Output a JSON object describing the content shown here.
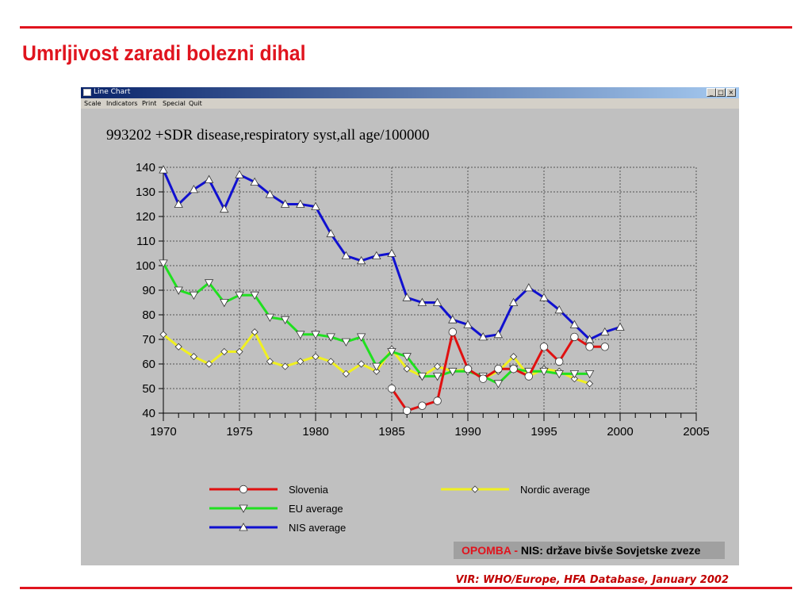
{
  "slide": {
    "title": "Umrljivost zaradi bolezni dihal",
    "source": "VIR: WHO/Europe, HFA Database, January 2002",
    "footnote_label": "OPOMBA - ",
    "footnote_text": "NIS: države bivše Sovjetske zveze"
  },
  "window": {
    "title": "Line Chart",
    "menu": [
      "Scale",
      "Indicators",
      "Print",
      "Special",
      "Quit"
    ],
    "controls": [
      "_",
      "□",
      "×"
    ]
  },
  "colors": {
    "accent_red": "#e0141e",
    "slovenia": "#e01010",
    "eu": "#20e020",
    "nis": "#1010d0",
    "nordic": "#f0f020"
  },
  "chart_data": {
    "type": "line",
    "title": "993202 +SDR disease,respiratory syst,all age/100000",
    "xlim": [
      1970,
      2005
    ],
    "ylim": [
      40,
      140
    ],
    "xticks": [
      1970,
      1975,
      1980,
      1985,
      1990,
      1995,
      2000,
      2005
    ],
    "yticks": [
      40,
      50,
      60,
      70,
      80,
      90,
      100,
      110,
      120,
      130,
      140
    ],
    "grid": true,
    "legend_position": "bottom",
    "series": [
      {
        "name": "Slovenia",
        "marker": "circle",
        "color": "#e01010",
        "x": [
          1985,
          1986,
          1987,
          1988,
          1989,
          1990,
          1991,
          1992,
          1993,
          1994,
          1995,
          1996,
          1997,
          1998,
          1999
        ],
        "values": [
          50,
          41,
          43,
          45,
          73,
          58,
          54,
          58,
          58,
          55,
          67,
          61,
          71,
          67,
          67
        ]
      },
      {
        "name": "Nordic average",
        "marker": "diamond",
        "color": "#f0f020",
        "x": [
          1970,
          1971,
          1972,
          1973,
          1974,
          1975,
          1976,
          1977,
          1978,
          1979,
          1980,
          1981,
          1982,
          1983,
          1984,
          1985,
          1986,
          1987,
          1988,
          1989,
          1990,
          1991,
          1992,
          1993,
          1994,
          1995,
          1996,
          1997,
          1998
        ],
        "values": [
          72,
          67,
          63,
          60,
          65,
          65,
          73,
          61,
          59,
          61,
          63,
          61,
          56,
          60,
          57,
          66,
          58,
          55,
          59,
          57,
          58,
          54,
          57,
          63,
          55,
          58,
          57,
          54,
          52
        ]
      },
      {
        "name": "EU average",
        "marker": "triangle-down",
        "color": "#20e020",
        "x": [
          1970,
          1971,
          1972,
          1973,
          1974,
          1975,
          1976,
          1977,
          1978,
          1979,
          1980,
          1981,
          1982,
          1983,
          1984,
          1985,
          1986,
          1987,
          1988,
          1989,
          1990,
          1991,
          1992,
          1993,
          1994,
          1995,
          1996,
          1997,
          1998
        ],
        "values": [
          101,
          90,
          88,
          93,
          85,
          88,
          88,
          79,
          78,
          72,
          72,
          71,
          69,
          71,
          59,
          65,
          63,
          55,
          55,
          57,
          57,
          55,
          52,
          58,
          57,
          57,
          56,
          56,
          56
        ]
      },
      {
        "name": "NIS average",
        "marker": "triangle-up",
        "color": "#1010d0",
        "x": [
          1970,
          1971,
          1972,
          1973,
          1974,
          1975,
          1976,
          1977,
          1978,
          1979,
          1980,
          1981,
          1982,
          1983,
          1984,
          1985,
          1986,
          1987,
          1988,
          1989,
          1990,
          1991,
          1992,
          1993,
          1994,
          1995,
          1996,
          1997,
          1998,
          1999,
          2000
        ],
        "values": [
          139,
          125,
          131,
          135,
          123,
          137,
          134,
          129,
          125,
          125,
          124,
          113,
          104,
          102,
          104,
          105,
          87,
          85,
          85,
          78,
          76,
          71,
          72,
          85,
          91,
          87,
          82,
          76,
          70,
          73,
          75
        ]
      }
    ]
  }
}
